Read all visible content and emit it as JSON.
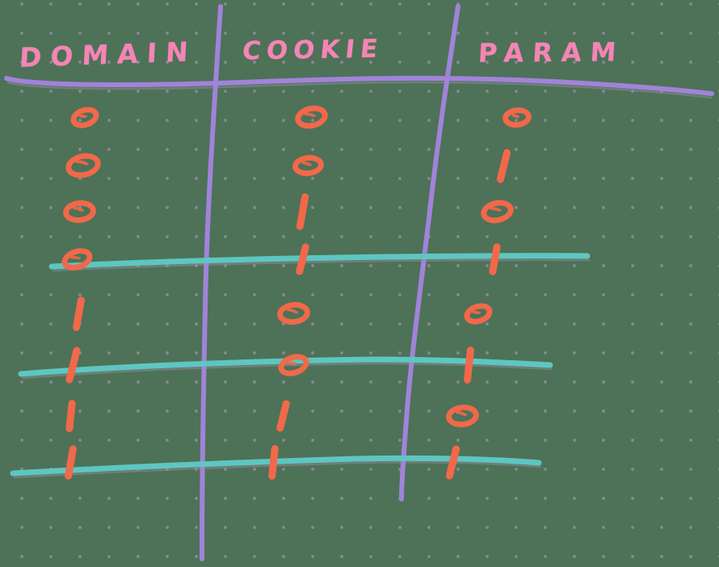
{
  "diagram": {
    "type": "hand-drawn-table",
    "columns": [
      {
        "label": "DOMAIN"
      },
      {
        "label": "COOKIE"
      },
      {
        "label": "PARAM"
      }
    ],
    "rows": [
      [
        "0",
        "0",
        "0"
      ],
      [
        "0",
        "0",
        "1"
      ],
      [
        "0",
        "1",
        "0"
      ],
      [
        "0",
        "1",
        "1"
      ],
      [
        "1",
        "0",
        "0"
      ],
      [
        "1",
        "0",
        "1"
      ],
      [
        "1",
        "1",
        "0"
      ],
      [
        "1",
        "1",
        "1"
      ]
    ],
    "symbol_legend": {
      "0": "circle",
      "1": "dash"
    },
    "group_separators_after_rows": [
      4,
      6,
      8
    ]
  },
  "colors": {
    "background": "#4d7257",
    "dot_grid": "#8e8596",
    "header_ink": "#f585b5",
    "divider_ink": "#a183d9",
    "separator_ink": "#5ec6c1",
    "symbol_ink": "#f2684a"
  }
}
